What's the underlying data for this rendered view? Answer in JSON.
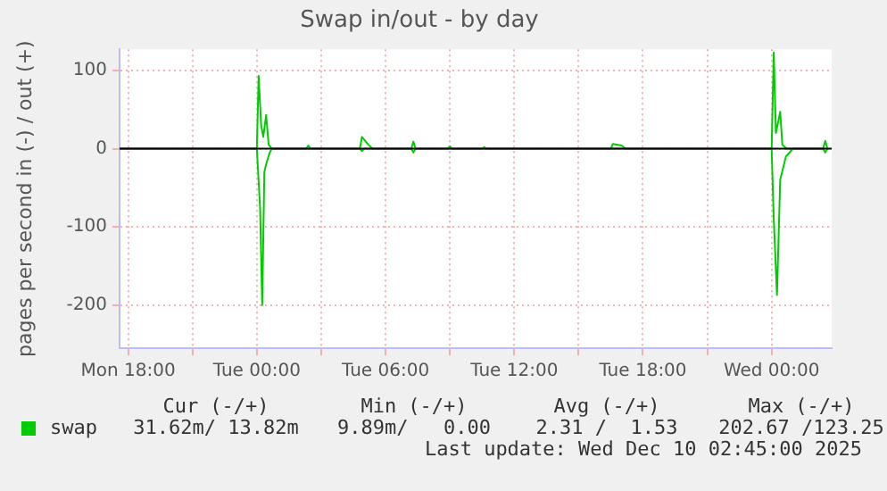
{
  "chart_data": {
    "type": "line",
    "title": "Swap in/out - by day",
    "ylabel": "pages per second in (-) / out (+)",
    "xlim": [
      "2025-12-08T17:36",
      "2025-12-10T02:48"
    ],
    "xticks": [
      {
        "value": "2025-12-08T18:00",
        "label": "Mon 18:00"
      },
      {
        "value": "2025-12-08T21:00",
        "label": null
      },
      {
        "value": "2025-12-09T00:00",
        "label": "Tue 00:00"
      },
      {
        "value": "2025-12-09T03:00",
        "label": null
      },
      {
        "value": "2025-12-09T06:00",
        "label": "Tue 06:00"
      },
      {
        "value": "2025-12-09T09:00",
        "label": null
      },
      {
        "value": "2025-12-09T12:00",
        "label": "Tue 12:00"
      },
      {
        "value": "2025-12-09T15:00",
        "label": null
      },
      {
        "value": "2025-12-09T18:00",
        "label": "Tue 18:00"
      },
      {
        "value": "2025-12-09T21:00",
        "label": null
      },
      {
        "value": "2025-12-10T00:00",
        "label": "Wed 00:00"
      }
    ],
    "ylim": [
      -255,
      127
    ],
    "yticks": [
      -200,
      -100,
      0,
      100
    ],
    "series": [
      {
        "name": "swap",
        "color": "#00cc00",
        "x": [
          "2025-12-08T17:36",
          "2025-12-09T00:00",
          "2025-12-09T00:09",
          "2025-12-09T00:15",
          "2025-12-09T00:21",
          "2025-12-09T00:26",
          "2025-12-09T00:36",
          "2025-12-09T00:42",
          "2025-12-09T04:48",
          "2025-12-09T04:54",
          "2025-12-09T05:00",
          "2025-12-09T07:12",
          "2025-12-09T07:18",
          "2025-12-09T07:24",
          "2025-12-10T00:00",
          "2025-12-10T00:06",
          "2025-12-10T00:15",
          "2025-12-10T00:24",
          "2025-12-10T00:40",
          "2025-12-10T01:00",
          "2025-12-10T02:24",
          "2025-12-10T02:30",
          "2025-12-10T02:36"
        ],
        "values": [
          0,
          0,
          -75,
          -200,
          -30,
          -20,
          -5,
          0,
          0,
          -3,
          0,
          0,
          -5,
          0,
          0,
          -90,
          -187,
          -40,
          -10,
          0,
          0,
          -5,
          0
        ]
      },
      {
        "color": "#00cc00",
        "x": [
          "2025-12-08T17:36",
          "2025-12-09T00:00",
          "2025-12-09T00:05",
          "2025-12-09T00:12",
          "2025-12-09T00:18",
          "2025-12-09T00:26",
          "2025-12-09T00:33",
          "2025-12-09T00:42",
          "2025-12-09T02:18",
          "2025-12-09T02:24",
          "2025-12-09T02:30",
          "2025-12-09T04:48",
          "2025-12-09T04:54",
          "2025-12-09T05:12",
          "2025-12-09T05:24",
          "2025-12-09T07:12",
          "2025-12-09T07:18",
          "2025-12-09T07:24",
          "2025-12-09T08:54",
          "2025-12-09T09:00",
          "2025-12-09T09:06",
          "2025-12-09T10:30",
          "2025-12-09T10:36",
          "2025-12-09T10:42",
          "2025-12-09T16:30",
          "2025-12-09T16:36",
          "2025-12-09T17:00",
          "2025-12-09T17:12",
          "2025-12-10T00:00",
          "2025-12-10T00:06",
          "2025-12-10T00:12",
          "2025-12-10T00:24",
          "2025-12-10T00:30",
          "2025-12-10T00:42",
          "2025-12-10T02:24",
          "2025-12-10T02:30",
          "2025-12-10T02:36"
        ],
        "values": [
          0,
          0,
          93,
          30,
          15,
          43,
          5,
          0,
          0,
          4,
          0,
          0,
          15,
          5,
          0,
          0,
          9,
          0,
          0,
          3,
          0,
          0,
          2,
          0,
          0,
          6,
          4,
          0,
          0,
          123,
          20,
          47,
          5,
          0,
          0,
          10,
          0
        ]
      }
    ],
    "ref_lines": [
      {
        "axis": "y",
        "value": 0,
        "color": "#000000"
      }
    ],
    "grid": true,
    "legend": "bottom left",
    "annotations": [
      "Cur (-/+)",
      "Min (-/+)",
      "Avg (-/+)",
      "Max (-/+)",
      "31.62m/ 13.82m",
      "9.89m/   0.00",
      "2.31 /  1.53",
      "202.67 /123.25",
      "Last update: Wed Dec 10 02:45:00 2025"
    ]
  }
}
